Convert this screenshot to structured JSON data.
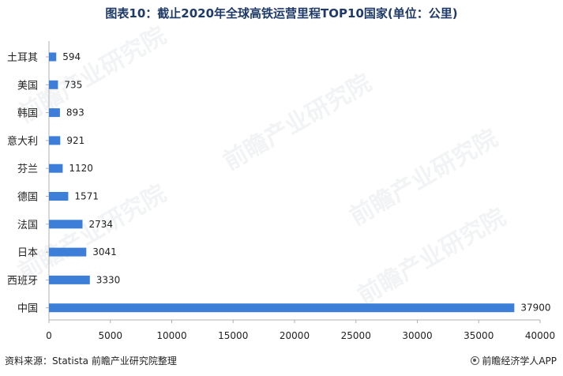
{
  "title": "图表10：截止2020年全球高铁运营里程TOP10国家(单位：公里)",
  "watermark_text": "前瞻产业研究院",
  "footer": {
    "source": "资料来源：Statista 前瞻产业研究院整理",
    "brand": "前瞻经济学人APP"
  },
  "colors": {
    "bar": "#3d7fd8",
    "axis": "#b0b0b0",
    "title": "#1f3a66"
  },
  "chart_data": {
    "type": "bar",
    "orientation": "horizontal",
    "title": "图表10：截止2020年全球高铁运营里程TOP10国家(单位：公里)",
    "xlabel": "",
    "ylabel": "",
    "categories": [
      "土耳其",
      "美国",
      "韩国",
      "意大利",
      "芬兰",
      "德国",
      "法国",
      "日本",
      "西班牙",
      "中国"
    ],
    "values": [
      594,
      735,
      893,
      921,
      1120,
      1571,
      2734,
      3041,
      3330,
      37900
    ],
    "xlim": [
      0,
      40000
    ],
    "xticks": [
      0,
      5000,
      10000,
      15000,
      20000,
      25000,
      30000,
      35000,
      40000
    ],
    "grid": false,
    "legend": "none",
    "data_labels": true
  }
}
